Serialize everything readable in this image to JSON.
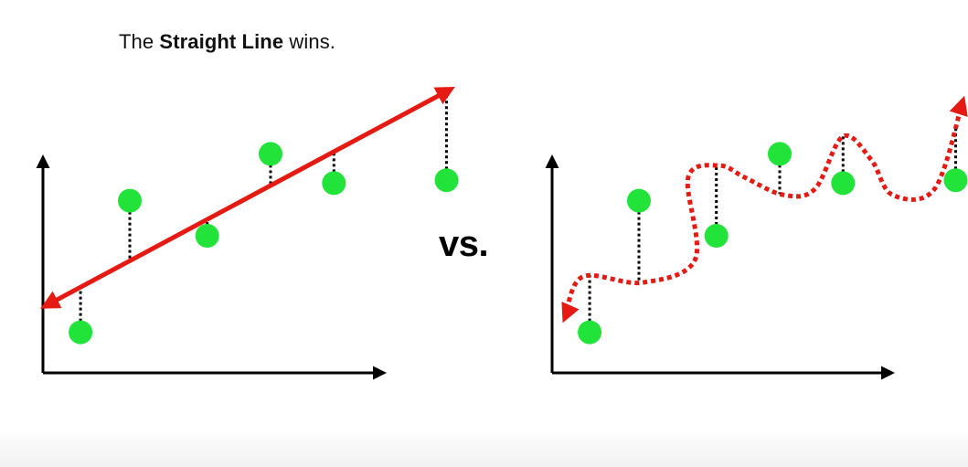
{
  "headline": {
    "prefix": "The ",
    "emphasis": "Straight Line",
    "suffix": " wins."
  },
  "vs_label": "vs.",
  "colors": {
    "point": "#22e33a",
    "fit_line": "#e51a12",
    "axis": "#000000",
    "residual": "#000000"
  },
  "panels": [
    {
      "name": "straight-line-fit",
      "fit_style": "solid-line-with-arrowheads",
      "points": [
        [
          0.3,
          0.35
        ],
        [
          1.0,
          2.6
        ],
        [
          2.1,
          2.0
        ],
        [
          3.0,
          3.4
        ],
        [
          3.9,
          2.9
        ],
        [
          5.5,
          2.95
        ]
      ],
      "fit": [
        [
          -0.2,
          0.8
        ],
        [
          5.55,
          4.5
        ]
      ],
      "residuals_to": "fit"
    },
    {
      "name": "wiggly-line-fit",
      "fit_style": "dotted-wiggly-curve-with-arrowheads",
      "points": [
        [
          0.3,
          0.35
        ],
        [
          1.0,
          2.6
        ],
        [
          2.1,
          2.0
        ],
        [
          3.0,
          3.4
        ],
        [
          3.9,
          2.9
        ],
        [
          5.5,
          2.95
        ]
      ],
      "fit": [
        [
          -0.05,
          0.6
        ],
        [
          0.2,
          1.3
        ],
        [
          1.05,
          1.2
        ],
        [
          1.8,
          1.6
        ],
        [
          1.7,
          3.0
        ],
        [
          2.15,
          3.2
        ],
        [
          2.5,
          3.0
        ],
        [
          3.05,
          2.7
        ],
        [
          3.5,
          2.8
        ],
        [
          3.9,
          3.7
        ],
        [
          4.3,
          3.3
        ],
        [
          4.6,
          2.7
        ],
        [
          5.2,
          2.8
        ],
        [
          5.6,
          4.3
        ]
      ],
      "residuals_to": "fit"
    }
  ]
}
